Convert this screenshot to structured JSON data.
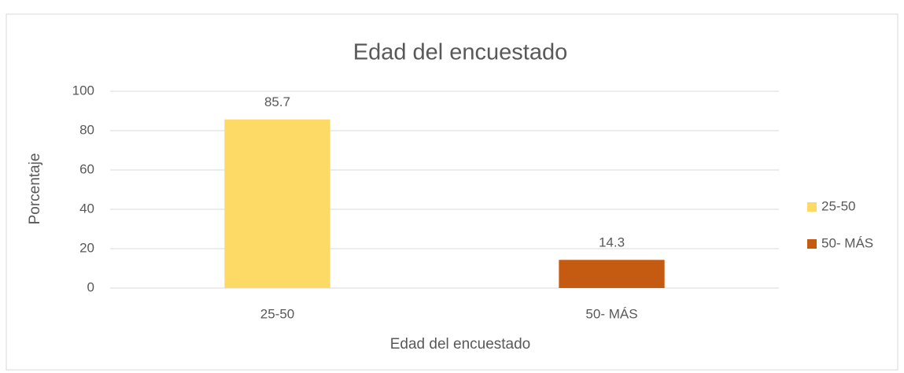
{
  "chart_data": {
    "type": "bar",
    "title": "Edad del encuestado",
    "x_label": "Edad del encuestado",
    "y_label": "Porcentaje",
    "categories": [
      "25-50",
      "50- MÁS"
    ],
    "values": [
      85.7,
      14.3
    ],
    "colors": [
      "#fdd966",
      "#c55a11"
    ],
    "ylim": [
      0,
      100
    ],
    "yticks": [
      0,
      20,
      40,
      60,
      80,
      100
    ],
    "grid": true,
    "legend": "right"
  }
}
